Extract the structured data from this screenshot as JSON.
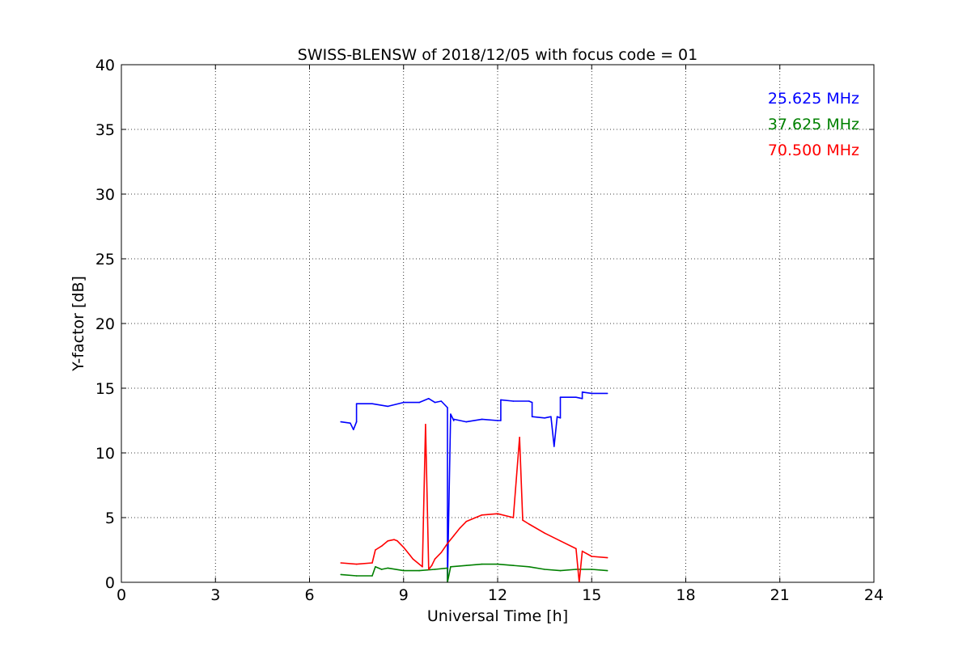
{
  "chart_data": {
    "type": "line",
    "title": "SWISS-BLENSW of 2018/12/05 with focus code = 01",
    "xlabel": "Universal Time [h]",
    "ylabel": "Y-factor [dB]",
    "xlim": [
      0,
      24
    ],
    "ylim": [
      0,
      40
    ],
    "xticks": [
      "0",
      "3",
      "6",
      "9",
      "12",
      "15",
      "18",
      "21",
      "24"
    ],
    "yticks": [
      "0",
      "5",
      "10",
      "15",
      "20",
      "25",
      "30",
      "35",
      "40"
    ],
    "grid": true,
    "legend_position": "top-right",
    "series": [
      {
        "name": "25.625 MHz",
        "color": "#0000ff",
        "x": [
          7.0,
          7.3,
          7.4,
          7.5,
          7.5,
          8.0,
          8.5,
          9.0,
          9.5,
          9.8,
          10.0,
          10.2,
          10.4,
          10.4,
          10.5,
          10.6,
          10.6,
          11.0,
          11.5,
          12.0,
          12.1,
          12.1,
          12.5,
          13.0,
          13.1,
          13.1,
          13.5,
          13.7,
          13.8,
          13.9,
          14.0,
          14.0,
          14.5,
          14.7,
          14.7,
          15.0,
          15.5
        ],
        "y": [
          12.4,
          12.3,
          11.8,
          12.4,
          13.8,
          13.8,
          13.6,
          13.9,
          13.9,
          14.2,
          13.9,
          14.0,
          13.5,
          0.0,
          13.0,
          12.5,
          12.6,
          12.4,
          12.6,
          12.5,
          12.5,
          14.1,
          14.0,
          14.0,
          13.9,
          12.8,
          12.7,
          12.8,
          10.5,
          12.8,
          12.7,
          14.3,
          14.3,
          14.2,
          14.7,
          14.6,
          14.6
        ]
      },
      {
        "name": "37.625 MHz",
        "color": "#008000",
        "x": [
          7.0,
          7.5,
          8.0,
          8.1,
          8.3,
          8.5,
          9.0,
          9.5,
          10.0,
          10.4,
          10.4,
          10.5,
          11.0,
          11.5,
          12.0,
          12.5,
          13.0,
          13.5,
          14.0,
          14.5,
          15.0,
          15.5
        ],
        "y": [
          0.6,
          0.5,
          0.5,
          1.2,
          1.0,
          1.1,
          0.9,
          0.9,
          1.0,
          1.1,
          0.0,
          1.2,
          1.3,
          1.4,
          1.4,
          1.3,
          1.2,
          1.0,
          0.9,
          1.0,
          1.0,
          0.9
        ]
      },
      {
        "name": "70.500 MHz",
        "color": "#ff0000",
        "x": [
          7.0,
          7.5,
          8.0,
          8.1,
          8.3,
          8.5,
          8.7,
          8.8,
          9.0,
          9.3,
          9.6,
          9.7,
          9.8,
          9.9,
          10.0,
          10.2,
          10.4,
          10.6,
          10.8,
          11.0,
          11.5,
          12.0,
          12.5,
          12.7,
          12.8,
          13.0,
          13.5,
          14.0,
          14.5,
          14.6,
          14.7,
          15.0,
          15.5
        ],
        "y": [
          1.5,
          1.4,
          1.5,
          2.5,
          2.8,
          3.2,
          3.3,
          3.2,
          2.7,
          1.8,
          1.2,
          12.2,
          1.0,
          1.3,
          1.8,
          2.3,
          3.0,
          3.6,
          4.2,
          4.7,
          5.2,
          5.3,
          5.0,
          11.2,
          4.8,
          4.5,
          3.8,
          3.2,
          2.6,
          0.0,
          2.4,
          2.0,
          1.9
        ]
      }
    ]
  }
}
